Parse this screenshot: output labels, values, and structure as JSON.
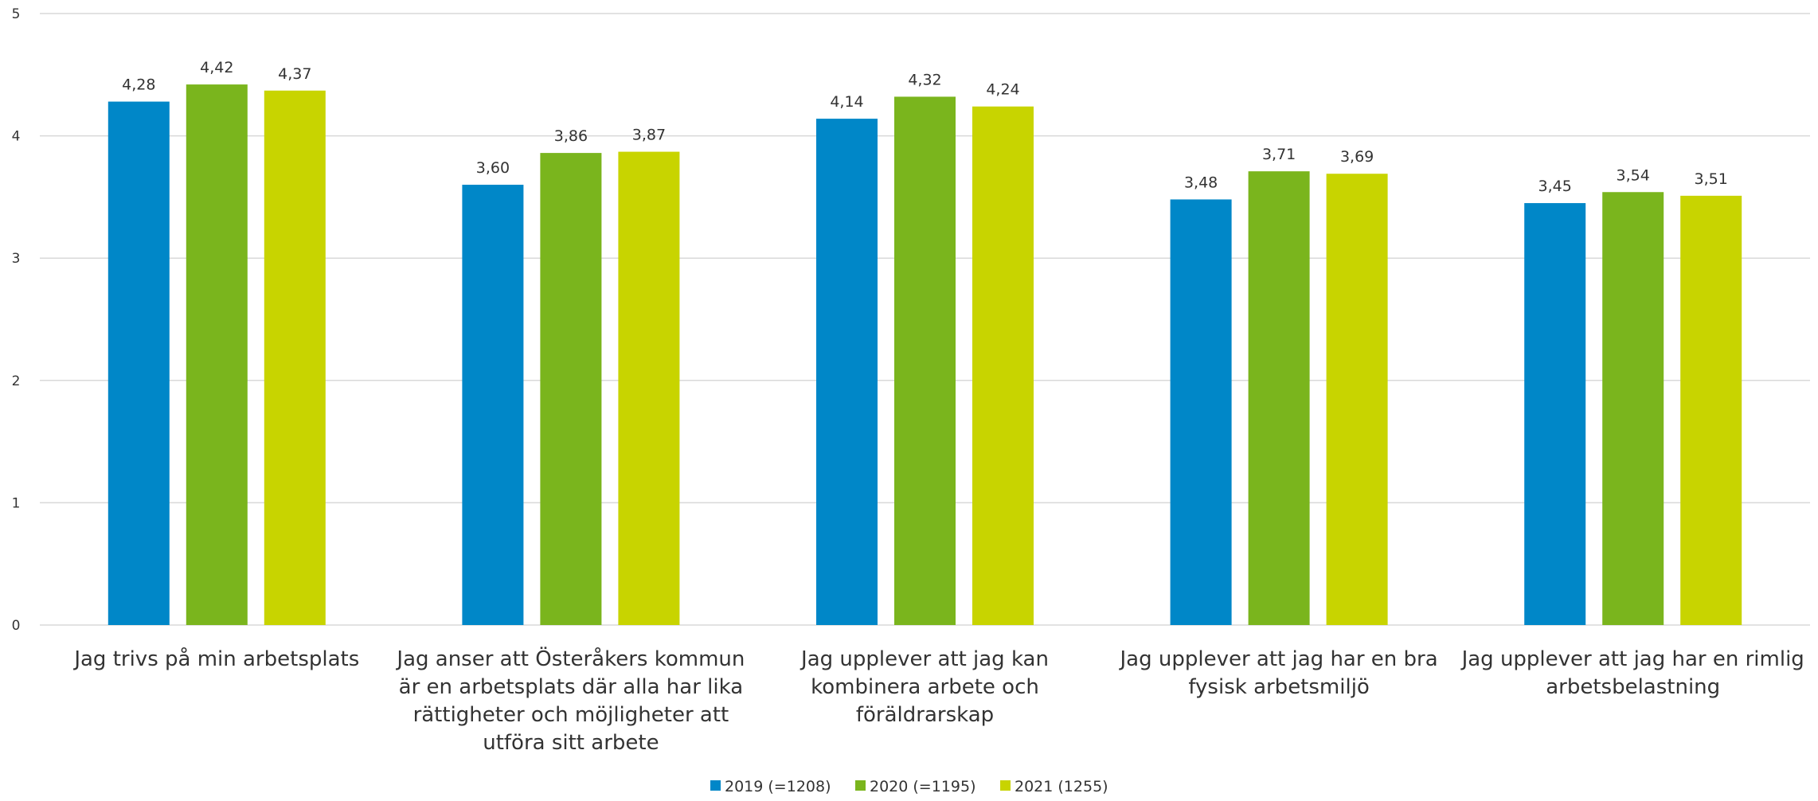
{
  "chart_data": {
    "type": "bar",
    "ylim": [
      0,
      5
    ],
    "yticks": [
      0,
      1,
      2,
      3,
      4,
      5
    ],
    "grid": true,
    "legend_position": "bottom",
    "categories": [
      [
        "Jag trivs på min arbetsplats"
      ],
      [
        "Jag anser att Österåkers kommun",
        "är en arbetsplats där alla har lika",
        "rättigheter och möjligheter att",
        "utföra sitt arbete"
      ],
      [
        "Jag upplever att jag kan",
        "kombinera arbete och",
        "föräldrarskap"
      ],
      [
        "Jag upplever att jag har en bra",
        "fysisk arbetsmiljö"
      ],
      [
        "Jag upplever att jag har en rimlig",
        "arbetsbelastning"
      ]
    ],
    "series": [
      {
        "name": "2019 (=1208)",
        "color": "#0087C8",
        "values": [
          4.28,
          3.6,
          4.14,
          3.48,
          3.45
        ],
        "labels": [
          "4,28",
          "3,60",
          "4,14",
          "3,48",
          "3,45"
        ]
      },
      {
        "name": "2020 (=1195)",
        "color": "#7AB51D",
        "values": [
          4.42,
          3.86,
          4.32,
          3.71,
          3.54
        ],
        "labels": [
          "4,42",
          "3,86",
          "4,32",
          "3,71",
          "3,54"
        ]
      },
      {
        "name": "2021 (1255)",
        "color": "#C8D400",
        "values": [
          4.37,
          3.87,
          4.24,
          3.69,
          3.51
        ],
        "labels": [
          "4,37",
          "3,87",
          "4,24",
          "3,69",
          "3,51"
        ]
      }
    ]
  }
}
